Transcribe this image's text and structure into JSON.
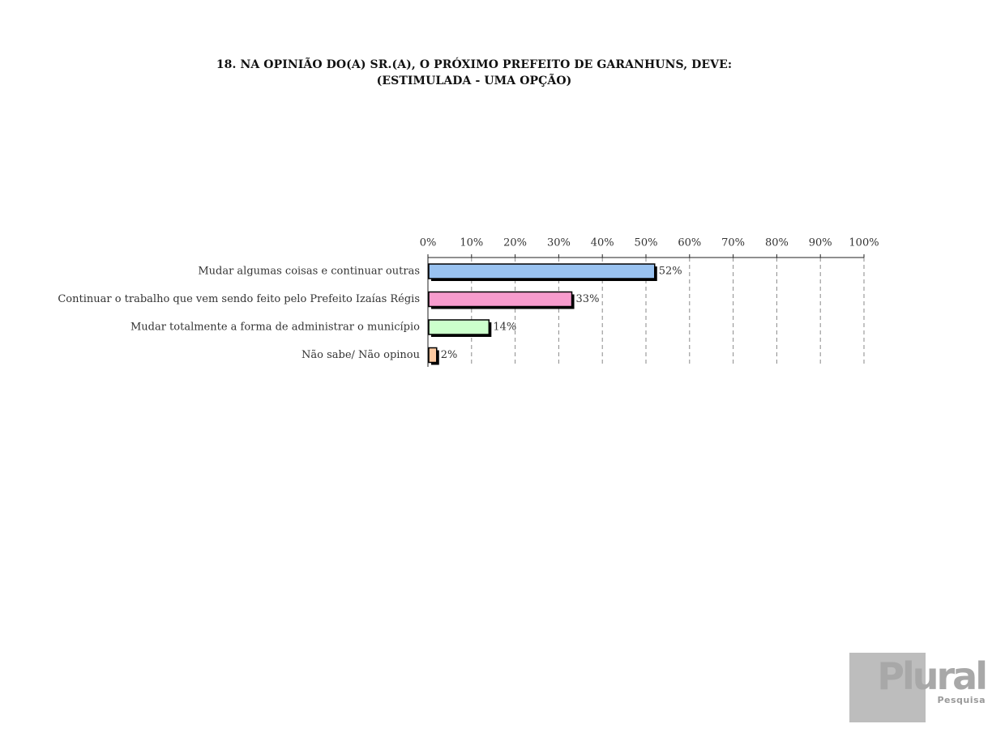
{
  "title_line1": "18. NA OPINIÃO DO(A) SR.(A), O PRÓXIMO PREFEITO DE GARANHUNS, DEVE:",
  "title_line2": "(ESTIMULADA - UMA OPÇÃO)",
  "logo": {
    "word": "Plural",
    "sub": "Pesquisa"
  },
  "chart_data": {
    "type": "bar",
    "orientation": "horizontal",
    "title": "18. NA OPINIÃO DO(A) SR.(A), O PRÓXIMO PREFEITO DE GARANHUNS, DEVE: (ESTIMULADA - UMA OPÇÃO)",
    "categories": [
      "Mudar algumas coisas e continuar outras",
      "Continuar o trabalho que vem sendo feito pelo Prefeito Izaías Régis",
      "Mudar totalmente a forma de administrar o município",
      "Não sabe/ Não opinou"
    ],
    "values": [
      52,
      33,
      14,
      2
    ],
    "value_labels": [
      "52%",
      "33%",
      "14%",
      "2%"
    ],
    "bar_colors": [
      "#99c2f0",
      "#f79ccd",
      "#ccffcc",
      "#fcc9a0"
    ],
    "xlim": [
      0,
      100
    ],
    "xticks": [
      0,
      10,
      20,
      30,
      40,
      50,
      60,
      70,
      80,
      90,
      100
    ],
    "xtick_labels": [
      "0%",
      "10%",
      "20%",
      "30%",
      "40%",
      "50%",
      "60%",
      "70%",
      "80%",
      "90%",
      "100%"
    ],
    "x_axis_position": "top",
    "grid": "vertical dashed",
    "legend": "none"
  }
}
